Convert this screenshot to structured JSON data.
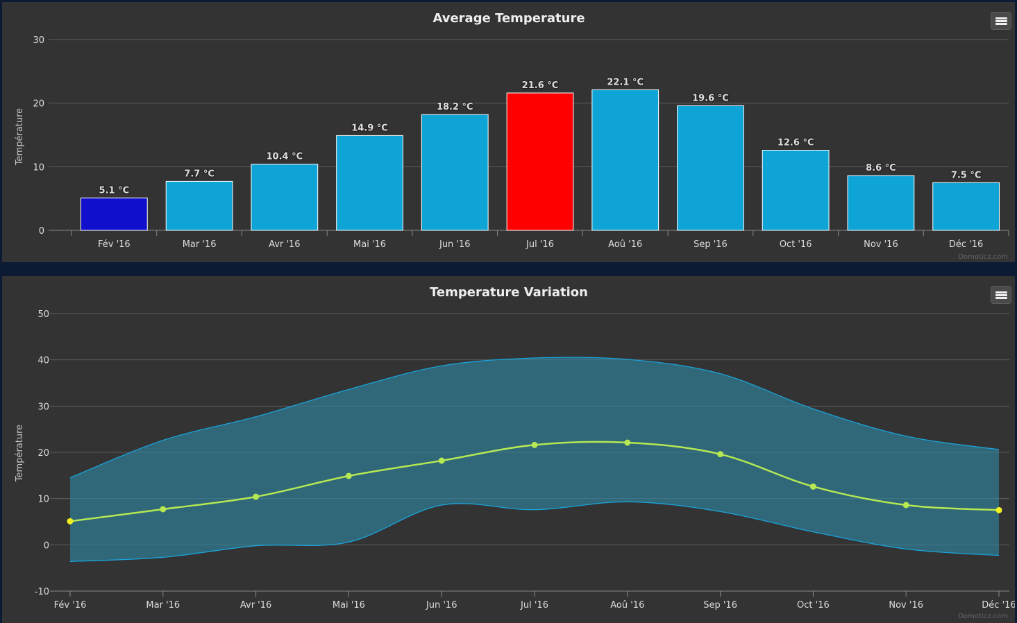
{
  "chart_data": [
    {
      "type": "bar",
      "title": "Average Temperature",
      "ylabel": "Température",
      "xlabel": "",
      "ylim": [
        0,
        30
      ],
      "yticks": [
        0,
        10,
        20,
        30
      ],
      "categories": [
        "Fév '16",
        "Mar '16",
        "Avr '16",
        "Mai '16",
        "Jun '16",
        "Jul '16",
        "Aoû '16",
        "Sep '16",
        "Oct '16",
        "Nov '16",
        "Déc '16"
      ],
      "values": [
        5.1,
        7.7,
        10.4,
        14.9,
        18.2,
        21.6,
        22.1,
        19.6,
        12.6,
        8.6,
        7.5
      ],
      "data_labels": [
        "5.1 °C",
        "7.7 °C",
        "10.4 °C",
        "14.9 °C",
        "18.2 °C",
        "21.6 °C",
        "22.1 °C",
        "19.6 °C",
        "12.6 °C",
        "8.6 °C",
        "7.5 °C"
      ],
      "bar_colors": [
        "#1010cc",
        "#0ea5d6",
        "#0ea5d6",
        "#0ea5d6",
        "#0ea5d6",
        "#ff0000",
        "#0ea5d6",
        "#0ea5d6",
        "#0ea5d6",
        "#0ea5d6",
        "#0ea5d6"
      ],
      "grid": true,
      "legend": "none",
      "credits": "Domoticz.com"
    },
    {
      "type": "area",
      "title": "Temperature Variation",
      "ylabel": "Température",
      "xlabel": "",
      "ylim": [
        -10,
        50
      ],
      "yticks": [
        -10,
        0,
        10,
        20,
        30,
        40,
        50
      ],
      "categories": [
        "Fév '16",
        "Mar '16",
        "Avr '16",
        "Mai '16",
        "Jun '16",
        "Jul '16",
        "Aoû '16",
        "Sep '16",
        "Oct '16",
        "Nov '16",
        "Déc '16"
      ],
      "series": [
        {
          "type": "arearange",
          "color": "#1aa3d9",
          "fill": "#2e8aa8",
          "low": [
            -3.6,
            -2.7,
            -0.2,
            0.6,
            8.6,
            7.6,
            9.3,
            7.2,
            2.8,
            -0.9,
            -2.3
          ],
          "high": [
            14.5,
            22.6,
            27.7,
            33.6,
            38.7,
            40.4,
            40.1,
            37.0,
            29.4,
            23.5,
            20.6
          ]
        },
        {
          "type": "line",
          "color": "#b5e853",
          "values": [
            5.1,
            7.7,
            10.4,
            14.9,
            18.2,
            21.6,
            22.1,
            19.6,
            12.6,
            8.6,
            7.5
          ]
        }
      ],
      "grid": true,
      "legend": "none",
      "credits": "Domoticz.com"
    }
  ],
  "menu": {
    "icon": "hamburger-icon"
  }
}
